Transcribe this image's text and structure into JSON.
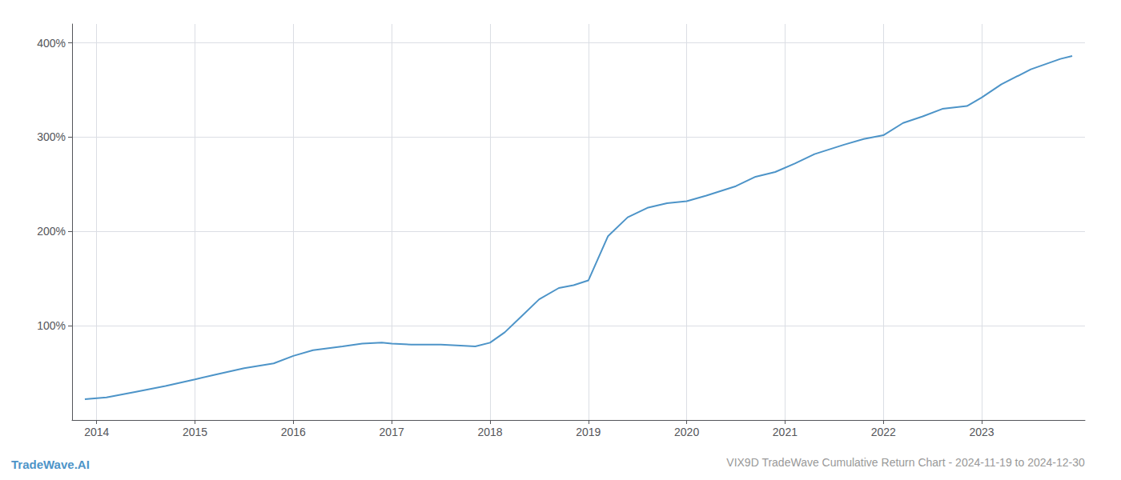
{
  "chart_data": {
    "type": "line",
    "title": "VIX9D TradeWave Cumulative Return Chart - 2024-11-19 to 2024-12-30",
    "annotations": [
      "TradeWave.AI"
    ],
    "x": [
      2013.88,
      2014.1,
      2014.4,
      2014.7,
      2015.0,
      2015.2,
      2015.5,
      2015.8,
      2016.0,
      2016.2,
      2016.5,
      2016.7,
      2016.9,
      2017.0,
      2017.2,
      2017.5,
      2017.7,
      2017.85,
      2018.0,
      2018.15,
      2018.3,
      2018.5,
      2018.7,
      2018.85,
      2019.0,
      2019.2,
      2019.4,
      2019.6,
      2019.8,
      2020.0,
      2020.2,
      2020.5,
      2020.7,
      2020.9,
      2021.1,
      2021.3,
      2021.6,
      2021.8,
      2022.0,
      2022.2,
      2022.4,
      2022.6,
      2022.85,
      2023.0,
      2023.2,
      2023.5,
      2023.8,
      2023.92
    ],
    "values": [
      22,
      24,
      30,
      36,
      43,
      48,
      55,
      60,
      68,
      74,
      78,
      81,
      82,
      81,
      80,
      80,
      79,
      78,
      82,
      93,
      108,
      128,
      140,
      143,
      148,
      195,
      215,
      225,
      230,
      232,
      238,
      248,
      258,
      263,
      272,
      282,
      292,
      298,
      302,
      315,
      322,
      330,
      333,
      342,
      356,
      372,
      383,
      386
    ],
    "color": "#4d94c8",
    "xlim": [
      2013.75,
      2024.05
    ],
    "xticks": [
      2014,
      2015,
      2016,
      2017,
      2018,
      2019,
      2020,
      2021,
      2022,
      2023
    ],
    "ylim": [
      0,
      420
    ],
    "yticks": [
      {
        "value": 100,
        "label": "100%"
      },
      {
        "value": 200,
        "label": "200%"
      },
      {
        "value": 300,
        "label": "300%"
      },
      {
        "value": 400,
        "label": "400%"
      }
    ],
    "grid": true
  }
}
